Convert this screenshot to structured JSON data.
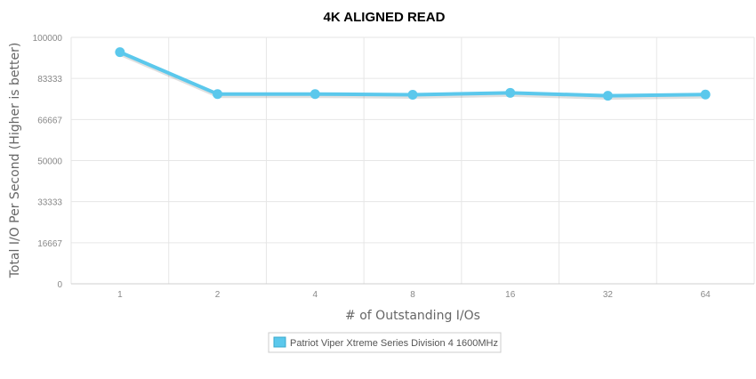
{
  "chart_data": {
    "type": "line",
    "title": "4K ALIGNED READ",
    "xlabel": "# of Outstanding I/Os",
    "ylabel": "Total I/O Per Second (Higher is better)",
    "categories": [
      "1",
      "2",
      "4",
      "8",
      "16",
      "32",
      "64"
    ],
    "yticks": [
      "0",
      "16667",
      "33333",
      "50000",
      "66667",
      "83333",
      "100000"
    ],
    "ylim": [
      0,
      100000
    ],
    "grid": true,
    "legend_position": "bottom-center",
    "series": [
      {
        "name": "Patriot Viper Xtreme Series Division 4 1600MHz",
        "color": "#5bc8ec",
        "values": [
          94000,
          77000,
          77000,
          76700,
          77500,
          76300,
          76800
        ]
      }
    ]
  }
}
